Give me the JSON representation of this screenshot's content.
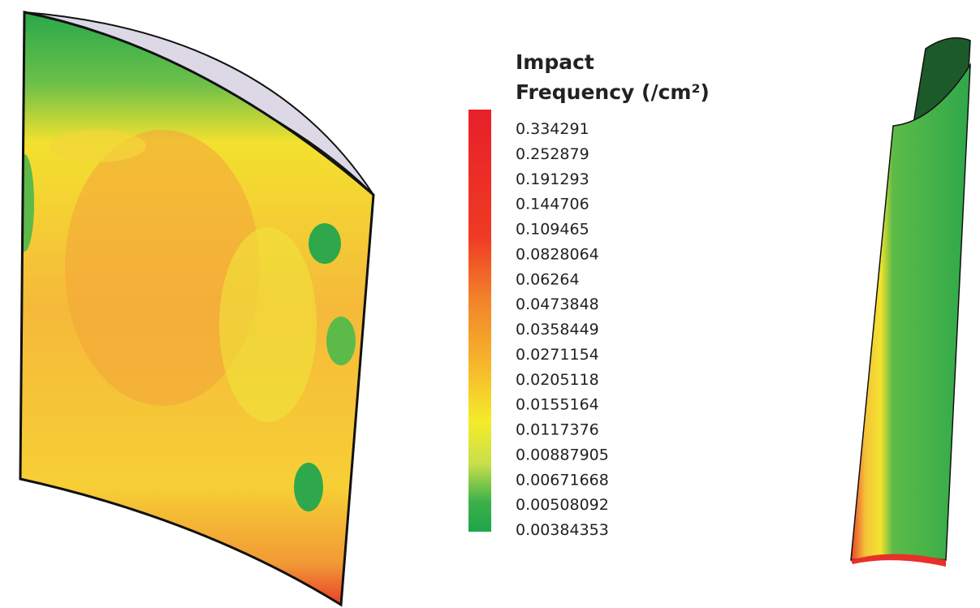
{
  "legend": {
    "title": [
      "Impact",
      "Frequency (/cm²)"
    ],
    "labels": [
      "0.334291",
      "0.252879",
      "0.191293",
      "0.144706",
      "0.109465",
      "0.0828064",
      "0.06264",
      "0.0473848",
      "0.0358449",
      "0.0271154",
      "0.0205118",
      "0.0155164",
      "0.0117376",
      "0.00887905",
      "0.00671668",
      "0.00508092",
      "0.00384353"
    ]
  }
}
